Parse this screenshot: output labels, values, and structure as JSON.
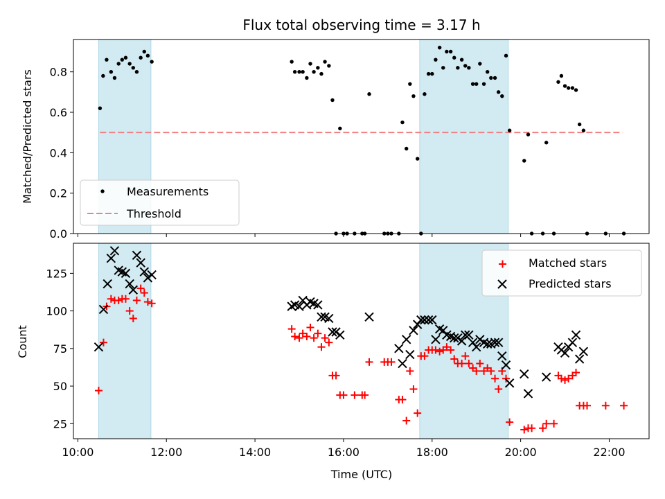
{
  "chart_data": {
    "type": "scatter",
    "title": "Flux total observing time = 3.17 h",
    "xlabel": "Time (UTC)",
    "x_ticks": [
      "10:00",
      "12:00",
      "14:00",
      "16:00",
      "18:00",
      "20:00",
      "22:00"
    ],
    "x_tick_hours": [
      10,
      12,
      14,
      16,
      18,
      20,
      22
    ],
    "xlim": [
      9.9,
      22.9
    ],
    "shaded_regions": [
      [
        10.47,
        11.65
      ],
      [
        17.72,
        19.72
      ]
    ],
    "shade_color": "#add8e6",
    "panels": [
      {
        "ylabel": "Matched/Predicted stars",
        "ylim": [
          0,
          0.96
        ],
        "y_ticks": [
          0.0,
          0.2,
          0.4,
          0.6,
          0.8
        ],
        "y_tick_labels": [
          "0.0",
          "0.2",
          "0.4",
          "0.6",
          "0.8"
        ],
        "legend": {
          "placement": "lower-left",
          "entries": [
            "Measurements",
            "Threshold"
          ]
        },
        "threshold": {
          "name": "Threshold",
          "value": 0.5,
          "x_range": [
            10.5,
            22.3
          ],
          "color": "#f08080"
        },
        "series": [
          {
            "name": "Measurements",
            "marker": "dot",
            "color": "#000000",
            "x": [
              10.5,
              10.57,
              10.65,
              10.75,
              10.83,
              10.92,
              11.0,
              11.08,
              11.17,
              11.25,
              11.33,
              11.42,
              11.5,
              11.58,
              11.67,
              14.83,
              14.9,
              15.0,
              15.08,
              15.17,
              15.25,
              15.33,
              15.42,
              15.5,
              15.58,
              15.67,
              15.75,
              15.83,
              15.92,
              16.0,
              16.08,
              16.25,
              16.42,
              16.48,
              16.58,
              16.92,
              17.0,
              17.08,
              17.25,
              17.33,
              17.42,
              17.5,
              17.58,
              17.67,
              17.75,
              17.83,
              17.92,
              18.0,
              18.08,
              18.17,
              18.25,
              18.33,
              18.42,
              18.5,
              18.58,
              18.67,
              18.75,
              18.83,
              18.92,
              19.0,
              19.08,
              19.17,
              19.25,
              19.33,
              19.42,
              19.5,
              19.58,
              19.67,
              19.75,
              20.08,
              20.17,
              20.25,
              20.5,
              20.58,
              20.75,
              20.85,
              20.92,
              21.0,
              21.08,
              21.17,
              21.25,
              21.33,
              21.42,
              21.5,
              21.92,
              22.33
            ],
            "y": [
              0.62,
              0.78,
              0.86,
              0.8,
              0.77,
              0.84,
              0.86,
              0.87,
              0.84,
              0.82,
              0.8,
              0.87,
              0.9,
              0.88,
              0.85,
              0.85,
              0.8,
              0.8,
              0.8,
              0.77,
              0.84,
              0.8,
              0.82,
              0.79,
              0.85,
              0.83,
              0.66,
              0.0,
              0.52,
              0.0,
              0.0,
              0.0,
              0.0,
              0.0,
              0.69,
              0.0,
              0.0,
              0.0,
              0.0,
              0.55,
              0.42,
              0.74,
              0.68,
              0.37,
              0.0,
              0.69,
              0.79,
              0.79,
              0.86,
              0.92,
              0.82,
              0.9,
              0.9,
              0.87,
              0.82,
              0.86,
              0.83,
              0.82,
              0.74,
              0.74,
              0.84,
              0.74,
              0.8,
              0.77,
              0.77,
              0.7,
              0.68,
              0.88,
              0.51,
              0.36,
              0.49,
              0.0,
              0.0,
              0.45,
              0.0,
              0.75,
              0.78,
              0.73,
              0.72,
              0.72,
              0.71,
              0.54,
              0.51,
              0.0,
              0.0,
              0.0
            ]
          }
        ]
      },
      {
        "ylabel": "Count",
        "ylim": [
          15,
          145
        ],
        "y_ticks": [
          25,
          50,
          75,
          100,
          125
        ],
        "y_tick_labels": [
          "25",
          "50",
          "75",
          "100",
          "125"
        ],
        "legend": {
          "placement": "upper-right",
          "entries": [
            "Matched stars",
            "Predicted stars"
          ]
        },
        "series": [
          {
            "name": "Matched stars",
            "marker": "plus",
            "color": "#ff0000",
            "x": [
              10.47,
              10.58,
              10.65,
              10.75,
              10.83,
              10.92,
              11.0,
              11.08,
              11.17,
              11.25,
              11.33,
              11.42,
              11.5,
              11.58,
              11.67,
              14.83,
              14.9,
              15.0,
              15.08,
              15.17,
              15.25,
              15.33,
              15.42,
              15.5,
              15.58,
              15.67,
              15.75,
              15.83,
              15.92,
              16.0,
              16.25,
              16.42,
              16.48,
              16.58,
              16.92,
              17.0,
              17.08,
              17.25,
              17.33,
              17.42,
              17.5,
              17.58,
              17.67,
              17.75,
              17.83,
              17.92,
              18.0,
              18.08,
              18.17,
              18.25,
              18.33,
              18.42,
              18.5,
              18.58,
              18.67,
              18.75,
              18.83,
              18.92,
              19.0,
              19.08,
              19.17,
              19.25,
              19.33,
              19.42,
              19.5,
              19.58,
              19.67,
              19.75,
              20.08,
              20.17,
              20.25,
              20.5,
              20.58,
              20.75,
              20.85,
              20.92,
              21.0,
              21.08,
              21.17,
              21.25,
              21.33,
              21.42,
              21.5,
              21.92,
              22.33
            ],
            "y": [
              47,
              79,
              103,
              108,
              107,
              107,
              108,
              108,
              100,
              95,
              107,
              115,
              112,
              106,
              105,
              88,
              83,
              82,
              85,
              83,
              89,
              82,
              85,
              76,
              82,
              79,
              57,
              57,
              44,
              44,
              44,
              44,
              44,
              66,
              66,
              66,
              66,
              41,
              41,
              27,
              60,
              48,
              32,
              70,
              70,
              74,
              74,
              74,
              73,
              74,
              76,
              74,
              68,
              65,
              65,
              70,
              65,
              62,
              60,
              65,
              60,
              62,
              60,
              55,
              48,
              60,
              55,
              26,
              21,
              22,
              22,
              22,
              25,
              25,
              57,
              55,
              54,
              55,
              57,
              59,
              37,
              37,
              37,
              37,
              37
            ]
          },
          {
            "name": "Predicted stars",
            "marker": "x",
            "color": "#000000",
            "x": [
              10.47,
              10.58,
              10.67,
              10.75,
              10.83,
              10.92,
              11.0,
              11.08,
              11.17,
              11.25,
              11.33,
              11.42,
              11.5,
              11.58,
              11.67,
              14.83,
              14.9,
              15.0,
              15.08,
              15.17,
              15.25,
              15.33,
              15.42,
              15.5,
              15.58,
              15.67,
              15.75,
              15.83,
              15.92,
              16.58,
              17.25,
              17.33,
              17.42,
              17.5,
              17.58,
              17.67,
              17.75,
              17.83,
              17.92,
              18.0,
              18.08,
              18.17,
              18.25,
              18.33,
              18.42,
              18.5,
              18.58,
              18.67,
              18.75,
              18.83,
              18.92,
              19.0,
              19.08,
              19.17,
              19.25,
              19.33,
              19.42,
              19.5,
              19.58,
              19.67,
              19.75,
              20.08,
              20.17,
              20.58,
              20.85,
              20.92,
              21.0,
              21.08,
              21.17,
              21.25,
              21.33,
              21.42
            ],
            "y": [
              76,
              101,
              118,
              135,
              140,
              127,
              126,
              125,
              118,
              114,
              137,
              132,
              126,
              122,
              124,
              103,
              104,
              103,
              107,
              104,
              106,
              105,
              104,
              96,
              96,
              95,
              86,
              86,
              84,
              96,
              75,
              65,
              81,
              71,
              87,
              91,
              94,
              94,
              94,
              94,
              81,
              88,
              87,
              84,
              83,
              82,
              82,
              80,
              84,
              84,
              79,
              76,
              81,
              79,
              78,
              78,
              79,
              79,
              70,
              64,
              52,
              58,
              45,
              56,
              76,
              74,
              72,
              76,
              79,
              84,
              68,
              73
            ]
          }
        ]
      }
    ]
  }
}
